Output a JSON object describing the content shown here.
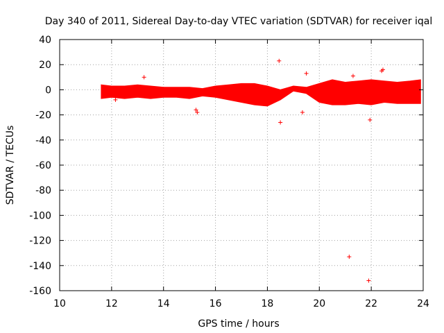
{
  "chart_data": {
    "type": "scatter",
    "title": "Day 340 of 2011, Sidereal Day-to-day VTEC variation (SDTVAR) for receiver iqal",
    "xlabel": "GPS time / hours",
    "ylabel": "SDTVAR / TECUs",
    "xlim": [
      10,
      24
    ],
    "ylim": [
      -160,
      40
    ],
    "grid": true,
    "marker": "+",
    "color": "#ff0000",
    "xticks": [
      10,
      12,
      14,
      16,
      18,
      20,
      22,
      24
    ],
    "yticks": [
      40,
      20,
      0,
      -20,
      -40,
      -60,
      -80,
      -100,
      -120,
      -140,
      -160
    ],
    "band": {
      "x": [
        11.6,
        12.0,
        12.5,
        13.0,
        13.5,
        14.0,
        14.5,
        15.0,
        15.5,
        16.0,
        16.5,
        17.0,
        17.5,
        18.0,
        18.5,
        19.0,
        19.5,
        20.0,
        20.5,
        21.0,
        21.5,
        22.0,
        22.5,
        23.0,
        23.5,
        23.9
      ],
      "upper": [
        4,
        3,
        3,
        4,
        3,
        2,
        2,
        2,
        1,
        3,
        4,
        5,
        5,
        3,
        0,
        3,
        2,
        5,
        8,
        6,
        7,
        8,
        7,
        6,
        7,
        8
      ],
      "lower": [
        -7,
        -6,
        -7,
        -6,
        -7,
        -6,
        -6,
        -7,
        -5,
        -6,
        -8,
        -10,
        -12,
        -13,
        -8,
        -1,
        -3,
        -10,
        -12,
        -12,
        -11,
        -12,
        -10,
        -11,
        -11,
        -11
      ]
    },
    "outliers": {
      "x": [
        15.25,
        15.3,
        18.45,
        18.5,
        19.35,
        19.5,
        21.15,
        21.9,
        21.95,
        22.4,
        22.45,
        13.25,
        12.15,
        21.3
      ],
      "y": [
        -16,
        -18,
        23,
        -26,
        -18,
        13,
        -133,
        -152,
        -24,
        15,
        16,
        10,
        -8,
        11
      ]
    }
  }
}
